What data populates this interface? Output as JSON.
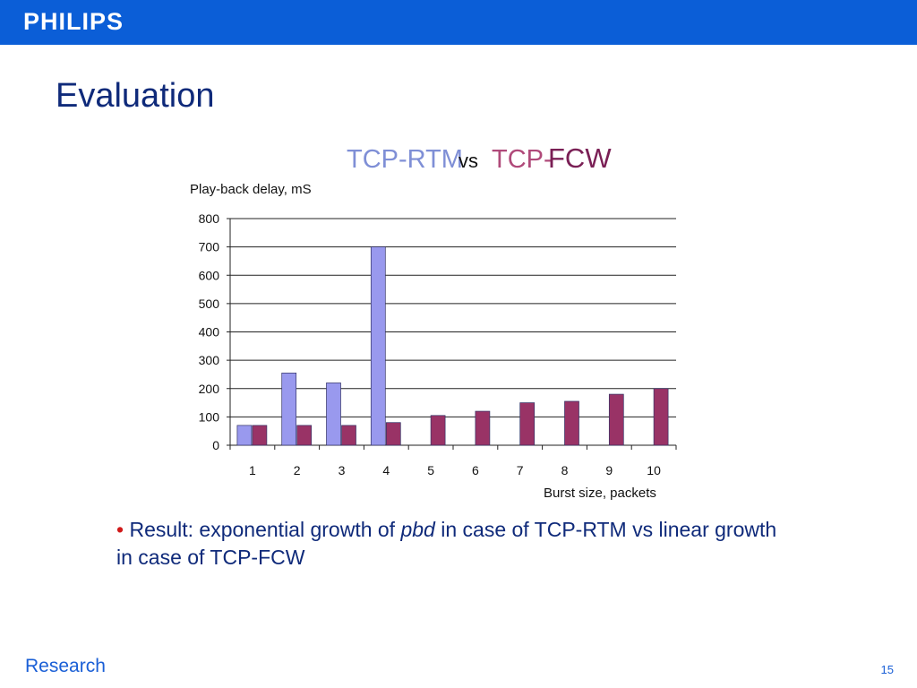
{
  "header": {
    "logo_text": "PHILIPS",
    "bar_color": "#0b5ed7"
  },
  "slide": {
    "title": "Evaluation"
  },
  "chart_data": {
    "type": "bar",
    "title_parts": [
      "TCP-RTM",
      "vs",
      "TCP-",
      "FCW"
    ],
    "ylabel": "Play-back delay, mS",
    "xlabel": "Burst size, packets",
    "categories": [
      "1",
      "2",
      "3",
      "4",
      "5",
      "6",
      "7",
      "8",
      "9",
      "10"
    ],
    "series": [
      {
        "name": "TCP-RTM",
        "color": "#9999ee",
        "values": [
          70,
          255,
          220,
          700,
          null,
          null,
          null,
          null,
          null,
          null
        ]
      },
      {
        "name": "TCP-FCW",
        "color": "#993366",
        "values": [
          70,
          70,
          70,
          80,
          105,
          120,
          150,
          155,
          180,
          200
        ]
      }
    ],
    "ylim": [
      0,
      800
    ],
    "yticks": [
      "0",
      "100",
      "200",
      "300",
      "400",
      "500",
      "600",
      "700",
      "800"
    ],
    "grid": true,
    "legend": "none"
  },
  "bullet": {
    "marker": "•",
    "text_before": "Result: exponential growth of",
    "emphasis": "pbd",
    "text_after": "in case of TCP-RTM vs linear growth in case of TCP-FCW"
  },
  "footer": {
    "left": "Research",
    "page_number": "15"
  }
}
